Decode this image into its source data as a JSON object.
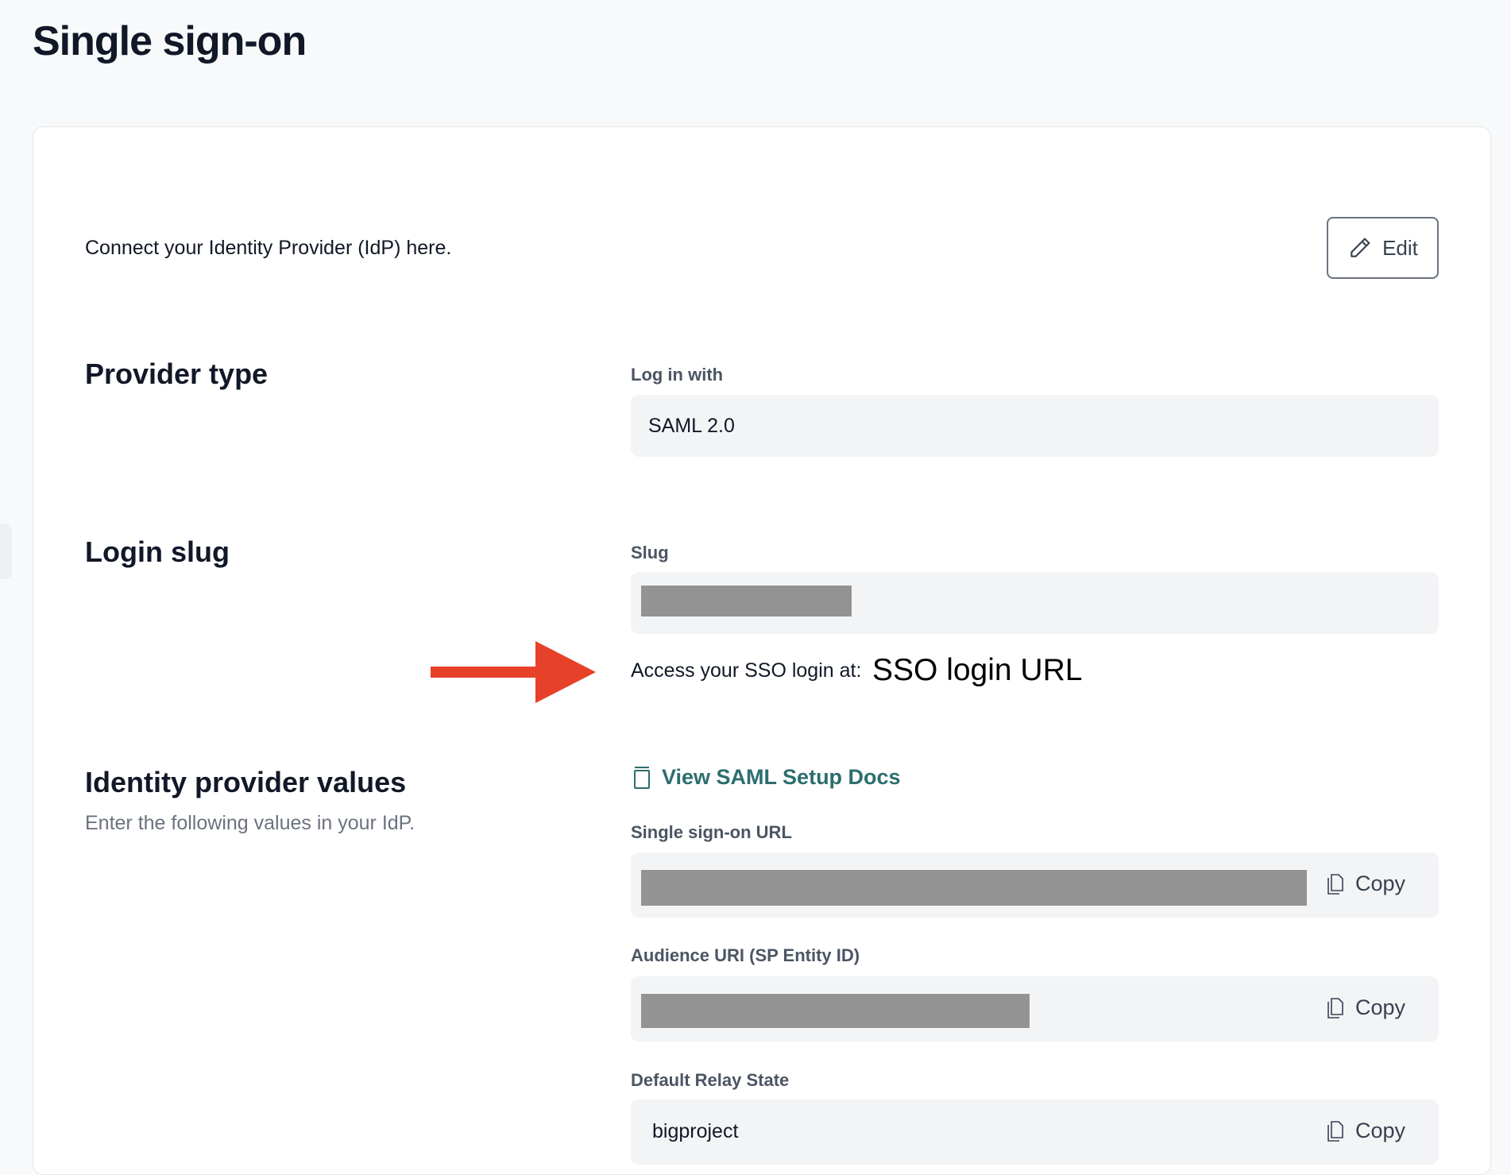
{
  "page": {
    "title": "Single sign-on"
  },
  "intro": {
    "text": "Connect your Identity Provider (IdP) here.",
    "edit_label": "Edit"
  },
  "provider_type": {
    "heading": "Provider type",
    "label": "Log in with",
    "value": "SAML 2.0"
  },
  "login_slug": {
    "heading": "Login slug",
    "label": "Slug",
    "access_text": "Access your SSO login at:",
    "annotation": "SSO login URL"
  },
  "idp_values": {
    "heading": "Identity provider values",
    "subtitle": "Enter the following values in your IdP.",
    "docs_link": "View SAML Setup Docs",
    "fields": [
      {
        "label": "Single sign-on URL",
        "value": "",
        "copy_label": "Copy"
      },
      {
        "label": "Audience URI (SP Entity ID)",
        "value": "",
        "copy_label": "Copy"
      },
      {
        "label": "Default Relay State",
        "value": "bigproject",
        "copy_label": "Copy"
      }
    ]
  },
  "colors": {
    "accent_link": "#2c6e6e",
    "annotation_arrow": "#e8412a",
    "redaction": "#939393"
  }
}
